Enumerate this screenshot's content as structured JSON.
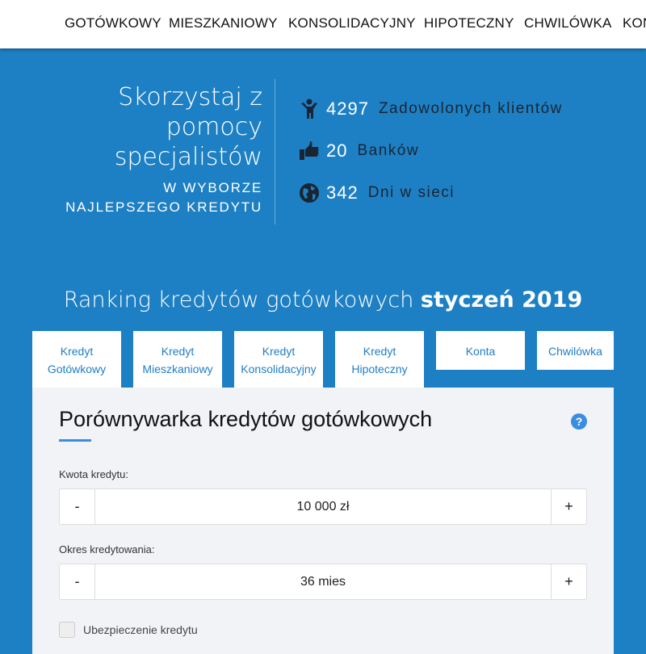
{
  "nav": [
    "GOTÓWKOWY",
    "MIESZKANIOWY",
    "KONSOLIDACYJNY",
    "HIPOTECZNY",
    "CHWILÓWKA",
    "KONTA"
  ],
  "hero": {
    "heading": [
      "Skorzystaj z",
      "pomocy",
      "specjalistów"
    ],
    "sub": [
      "W WYBORZE",
      "NAJLEPSZEGO KREDYTU"
    ]
  },
  "stats": [
    {
      "icon": "child-icon",
      "num": "4297",
      "label": "Zadowolonych klientów"
    },
    {
      "icon": "thumbs-up-icon",
      "num": "20",
      "label": "Banków"
    },
    {
      "icon": "globe-icon",
      "num": "342",
      "label": "Dni w sieci"
    }
  ],
  "ranking": {
    "text": "Ranking kredytów gotówkowych",
    "bold": "styczeń 2019"
  },
  "tabs": [
    [
      "Kredyt",
      "Gotówkowy"
    ],
    [
      "Kredyt",
      "Mieszkaniowy"
    ],
    [
      "Kredyt",
      "Konsolidacyjny"
    ],
    [
      "Kredyt",
      "Hipoteczny"
    ],
    [
      "Konta"
    ],
    [
      "Chwilówka"
    ]
  ],
  "panel": {
    "title": "Porównywarka kredytów gotówkowych",
    "help": "?",
    "amount": {
      "label": "Kwota kredytu:",
      "value": "10 000 zł",
      "minus": "-",
      "plus": "+"
    },
    "period": {
      "label": "Okres kredytowania:",
      "value": "36 mies",
      "minus": "-",
      "plus": "+"
    },
    "insurance": {
      "label": "Ubezpieczenie kredytu",
      "checked": false
    }
  },
  "colors": {
    "brand": "#1e80c4",
    "accent": "#3a8ee0"
  }
}
